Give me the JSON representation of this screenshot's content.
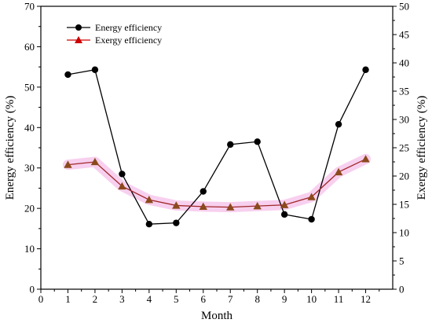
{
  "chart_data": {
    "type": "line",
    "xlabel": "Month",
    "ylabel_left": "Energy efficiency (%)",
    "ylabel_right": "Exergy efficiency (%)",
    "x": [
      1,
      2,
      3,
      4,
      5,
      6,
      7,
      8,
      9,
      10,
      11,
      12
    ],
    "xlim": [
      0,
      13
    ],
    "x_ticks": [
      "0",
      "1",
      "2",
      "3",
      "4",
      "5",
      "6",
      "7",
      "8",
      "9",
      "10",
      "11",
      "12"
    ],
    "ylim_left": [
      0,
      70
    ],
    "ylim_right": [
      0,
      50
    ],
    "y_ticks_left": [
      "0",
      "10",
      "20",
      "30",
      "40",
      "50",
      "60",
      "70"
    ],
    "y_ticks_right": [
      "0",
      "5",
      "10",
      "15",
      "20",
      "25",
      "30",
      "35",
      "40",
      "45",
      "50"
    ],
    "grid": false,
    "legend_position": "top-left",
    "series": [
      {
        "name": "Energy efficiency",
        "axis": "left",
        "color": "#000000",
        "marker": "circle",
        "values": [
          53.1,
          54.3,
          28.5,
          16.1,
          16.4,
          24.2,
          35.8,
          36.5,
          18.5,
          17.3,
          40.8,
          54.3
        ]
      },
      {
        "name": "Exergy efficiency",
        "axis": "right",
        "color": "#cc0000",
        "marker": "triangle",
        "values": [
          22.0,
          22.5,
          18.2,
          15.8,
          14.8,
          14.6,
          14.5,
          14.7,
          14.9,
          16.3,
          20.7,
          23.0
        ]
      }
    ]
  }
}
